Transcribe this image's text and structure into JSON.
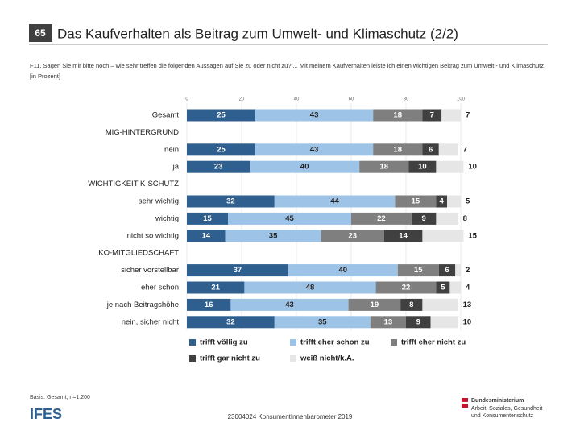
{
  "page_number": "65",
  "title": "Das Kaufverhalten als Beitrag zum Umwelt- und Klimaschutz (2/2)",
  "question": "F11. Sagen Sie mir bitte noch – wie sehr treffen die folgenden Aussagen auf Sie zu oder nicht zu? ... Mit meinem Kaufverhalten leiste ich einen wichtigen Beitrag zum Umwelt - und Klimaschutz. [in Prozent]",
  "basis": "Basis: Gesamt, n=1.200",
  "logo": "IFES",
  "footer": "23004024 KonsumentInnenbarometer 2019",
  "ministry": [
    "Bundesministerium",
    "Arbeit, Soziales, Gesundheit",
    "und Konsumentenschutz"
  ],
  "chart_data": {
    "type": "stacked_barh",
    "categories": [
      "Gesamt",
      "MIG-HINTERGRUND",
      "nein",
      "ja",
      "WICHTIGKEIT K-SCHUTZ",
      "sehr wichtig",
      "wichtig",
      "nicht so wichtig",
      "KO-MITGLIEDSCHAFT",
      "sicher vorstellbar",
      "eher schon",
      "je nach Beitragshöhe",
      "nein, sicher nicht"
    ],
    "series": [
      {
        "name": "trifft völlig zu",
        "color": "#2f5f8f",
        "values": [
          25,
          null,
          25,
          23,
          null,
          32,
          15,
          14,
          null,
          37,
          21,
          16,
          32
        ]
      },
      {
        "name": "trifft eher schon zu",
        "color": "#9dc3e6",
        "values": [
          43,
          null,
          43,
          40,
          null,
          44,
          45,
          35,
          null,
          40,
          48,
          43,
          35
        ]
      },
      {
        "name": "trifft eher nicht zu",
        "color": "#7f7f7f",
        "values": [
          18,
          null,
          18,
          18,
          null,
          15,
          22,
          23,
          null,
          15,
          22,
          19,
          13
        ]
      },
      {
        "name": "trifft gar nicht zu",
        "color": "#404040",
        "values": [
          7,
          null,
          6,
          10,
          null,
          4,
          9,
          14,
          null,
          6,
          5,
          8,
          9
        ]
      },
      {
        "name": "weiß nicht/k.A.",
        "color": "#e6e6e6",
        "values": [
          7,
          null,
          7,
          10,
          null,
          5,
          8,
          15,
          null,
          2,
          4,
          13,
          10
        ]
      }
    ],
    "xlim": [
      0,
      100
    ],
    "xticks": [
      0,
      20,
      40,
      60,
      80,
      100
    ],
    "grid": true
  }
}
